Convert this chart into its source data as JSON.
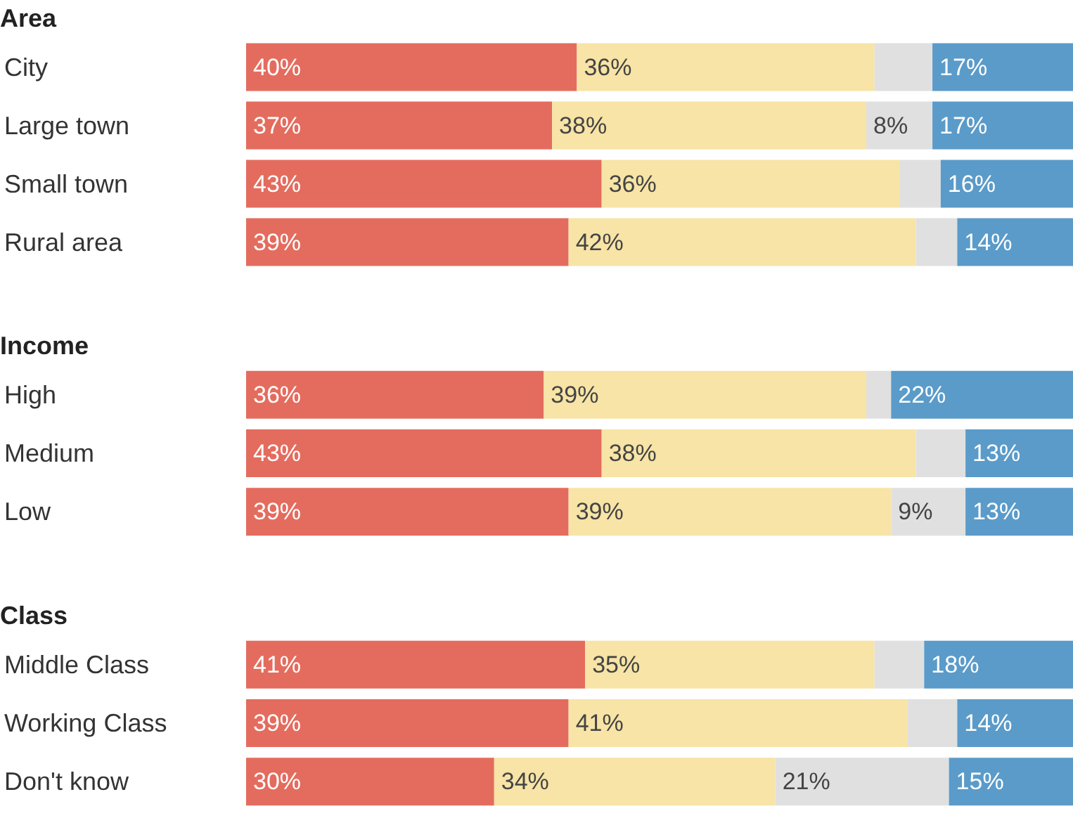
{
  "chart_data": [
    {
      "type": "bar",
      "title": "Area",
      "orientation": "horizontal",
      "stacked": true,
      "categories": [
        "City",
        "Large town",
        "Small town",
        "Rural area"
      ],
      "xlim": [
        0,
        100
      ],
      "series": [
        {
          "color": "#e46c5e",
          "values": [
            40,
            37,
            43,
            39
          ],
          "value_labels": [
            "40%",
            "37%",
            "43%",
            "39%"
          ]
        },
        {
          "color": "#f7e4a6",
          "values": [
            36,
            38,
            36,
            42
          ],
          "value_labels": [
            "36%",
            "38%",
            "36%",
            "42%"
          ]
        },
        {
          "color": "#e0e0e0",
          "values": [
            7,
            8,
            5,
            5
          ],
          "value_labels": [
            null,
            "8%",
            null,
            null
          ]
        },
        {
          "color": "#5a9bc9",
          "values": [
            17,
            17,
            16,
            14
          ],
          "value_labels": [
            "17%",
            "17%",
            "16%",
            "14%"
          ]
        }
      ]
    },
    {
      "type": "bar",
      "title": "Income",
      "orientation": "horizontal",
      "stacked": true,
      "categories": [
        "High",
        "Medium",
        "Low"
      ],
      "xlim": [
        0,
        100
      ],
      "series": [
        {
          "color": "#e46c5e",
          "values": [
            36,
            43,
            39
          ],
          "value_labels": [
            "36%",
            "43%",
            "39%"
          ]
        },
        {
          "color": "#f7e4a6",
          "values": [
            39,
            38,
            39
          ],
          "value_labels": [
            "39%",
            "38%",
            "39%"
          ]
        },
        {
          "color": "#e0e0e0",
          "values": [
            3,
            6,
            9
          ],
          "value_labels": [
            null,
            null,
            "9%"
          ]
        },
        {
          "color": "#5a9bc9",
          "values": [
            22,
            13,
            13
          ],
          "value_labels": [
            "22%",
            "13%",
            "13%"
          ]
        }
      ]
    },
    {
      "type": "bar",
      "title": "Class",
      "orientation": "horizontal",
      "stacked": true,
      "categories": [
        "Middle Class",
        "Working Class",
        "Don't know"
      ],
      "xlim": [
        0,
        100
      ],
      "series": [
        {
          "color": "#e46c5e",
          "values": [
            41,
            39,
            30
          ],
          "value_labels": [
            "41%",
            "39%",
            "30%"
          ]
        },
        {
          "color": "#f7e4a6",
          "values": [
            35,
            41,
            34
          ],
          "value_labels": [
            "35%",
            "41%",
            "34%"
          ]
        },
        {
          "color": "#e0e0e0",
          "values": [
            6,
            6,
            21
          ],
          "value_labels": [
            null,
            null,
            "21%"
          ]
        },
        {
          "color": "#5a9bc9",
          "values": [
            18,
            14,
            15
          ],
          "value_labels": [
            "18%",
            "14%",
            "15%"
          ]
        }
      ]
    }
  ]
}
